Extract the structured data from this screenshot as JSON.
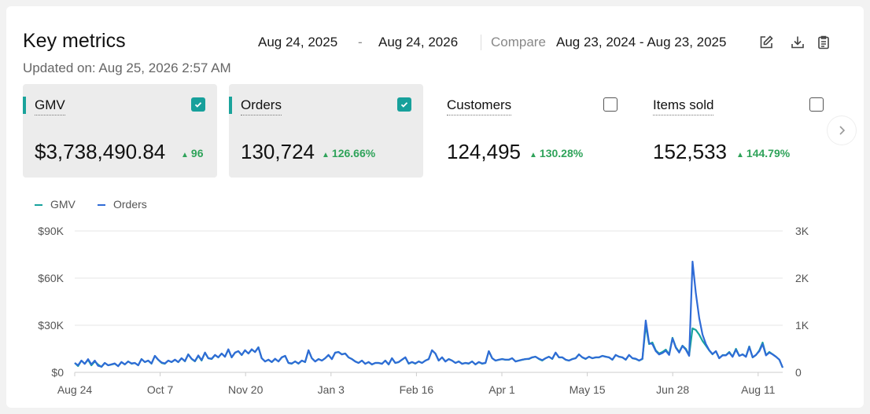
{
  "header": {
    "title": "Key metrics",
    "updated": "Updated on: Aug 25, 2026 2:57 AM",
    "date_start": "Aug 24, 2025",
    "date_dash": "-",
    "date_end": "Aug 24, 2026",
    "compare_label": "Compare",
    "compare_range": "Aug 23, 2024 - Aug 23, 2025",
    "icons": [
      "edit-icon",
      "download-icon",
      "clipboard-icon"
    ]
  },
  "metrics": [
    {
      "label": "GMV",
      "value": "$3,738,490.84",
      "change": "96",
      "selected": true
    },
    {
      "label": "Orders",
      "value": "130,724",
      "change": "126.66%",
      "selected": true
    },
    {
      "label": "Customers",
      "value": "124,495",
      "change": "130.28%",
      "selected": false
    },
    {
      "label": "Items sold",
      "value": "152,533",
      "change": "144.79%",
      "selected": false
    }
  ],
  "colors": {
    "gmv": "#17a39d",
    "orders": "#2f6bd6",
    "positive": "#2fa35a",
    "accent": "#1aa39b"
  },
  "chart_data": {
    "type": "line",
    "legend": [
      "GMV",
      "Orders"
    ],
    "x_ticks": [
      "Aug 24",
      "Oct 7",
      "Nov 20",
      "Jan 3",
      "Feb 16",
      "Apr 1",
      "May 15",
      "Jun 28",
      "Aug 11"
    ],
    "y_left_ticks": [
      "$0",
      "$30K",
      "$60K",
      "$90K"
    ],
    "y_right_ticks": [
      "0",
      "1K",
      "2K",
      "3K"
    ],
    "y_left_range": [
      0,
      90000
    ],
    "y_right_range": [
      0,
      3000
    ],
    "series": [
      {
        "name": "GMV",
        "values": [
          6000,
          4000,
          7500,
          5500,
          8000,
          4500,
          7000,
          5000,
          3500,
          6000,
          4500,
          5000,
          5500,
          4000,
          6500,
          5000,
          7000,
          5500,
          6000,
          4500,
          8500,
          6500,
          7500,
          5500,
          10500,
          8000,
          6000,
          5500,
          7500,
          6500,
          8000,
          6500,
          9000,
          7000,
          11500,
          8500,
          7000,
          10500,
          7500,
          12500,
          9000,
          8500,
          11000,
          9500,
          12000,
          10000,
          14500,
          9500,
          12500,
          13500,
          11000,
          14000,
          12000,
          14500,
          13000,
          16000,
          9000,
          7000,
          8000,
          6500,
          8500,
          7000,
          9500,
          10500,
          6000,
          5500,
          7000,
          5500,
          7500,
          6500,
          14000,
          9000,
          7000,
          8500,
          7500,
          9000,
          11000,
          8500,
          12500,
          13000,
          11500,
          12000,
          9500,
          8500,
          7000,
          6000,
          7500,
          5500,
          6500,
          5000,
          6000,
          6000,
          5500,
          7500,
          5000,
          9000,
          6000,
          6500,
          8000,
          9500,
          5500,
          6500,
          5500,
          7000,
          6000,
          7500,
          8500,
          14000,
          12000,
          7500,
          9500,
          7000,
          8500,
          7500,
          6000,
          7000,
          5500,
          6000,
          5500,
          7000,
          5000,
          6500,
          5500,
          6000,
          13500,
          9000,
          7500,
          8000,
          8500,
          8000,
          8000,
          9000,
          7000,
          7500,
          8000,
          8500,
          8500,
          9500,
          10000,
          8500,
          7500,
          9000,
          10000,
          8500,
          12500,
          9500,
          9500,
          8000,
          7500,
          8500,
          9000,
          11500,
          9500,
          8500,
          10000,
          9000,
          9500,
          9500,
          10500,
          10000,
          9500,
          8000,
          11000,
          10000,
          9500,
          8000,
          11000,
          9000,
          8500,
          7500,
          8500,
          30000,
          18000,
          19000,
          14000,
          12000,
          13000,
          14500,
          11500,
          22000,
          16000,
          13000,
          17000,
          15000,
          11000,
          28000,
          27000,
          24000,
          20000,
          17000,
          14000,
          11500,
          13500,
          9000,
          11000,
          11000,
          13000,
          10000,
          15000,
          10500,
          11500,
          10000,
          16500,
          9500,
          11000,
          14000,
          19000,
          11000,
          13000,
          11500,
          10000,
          8000,
          3000
        ]
      },
      {
        "name": "Orders",
        "values": [
          200,
          150,
          250,
          180,
          280,
          170,
          250,
          140,
          120,
          200,
          150,
          170,
          190,
          130,
          220,
          170,
          230,
          190,
          200,
          150,
          280,
          220,
          250,
          190,
          350,
          270,
          210,
          190,
          250,
          220,
          270,
          220,
          300,
          240,
          380,
          290,
          240,
          360,
          260,
          420,
          300,
          290,
          370,
          320,
          400,
          330,
          490,
          320,
          420,
          450,
          370,
          470,
          400,
          490,
          430,
          530,
          300,
          230,
          270,
          220,
          290,
          230,
          320,
          350,
          200,
          190,
          230,
          190,
          250,
          220,
          470,
          300,
          230,
          280,
          250,
          300,
          370,
          280,
          420,
          430,
          380,
          400,
          320,
          280,
          230,
          200,
          250,
          180,
          220,
          170,
          200,
          200,
          180,
          250,
          170,
          300,
          200,
          220,
          270,
          320,
          190,
          220,
          190,
          230,
          200,
          250,
          280,
          470,
          400,
          250,
          320,
          230,
          280,
          250,
          200,
          230,
          180,
          200,
          190,
          230,
          170,
          220,
          190,
          200,
          450,
          300,
          250,
          270,
          280,
          270,
          270,
          300,
          230,
          250,
          270,
          280,
          290,
          320,
          330,
          290,
          260,
          300,
          330,
          290,
          420,
          320,
          320,
          270,
          250,
          280,
          300,
          380,
          320,
          290,
          330,
          300,
          320,
          320,
          350,
          330,
          320,
          270,
          370,
          330,
          320,
          270,
          370,
          300,
          290,
          250,
          290,
          1100,
          620,
          600,
          450,
          380,
          410,
          460,
          370,
          720,
          520,
          420,
          560,
          480,
          350,
          2350,
          1680,
          1150,
          800,
          600,
          470,
          390,
          450,
          300,
          360,
          360,
          420,
          330,
          480,
          350,
          380,
          330,
          540,
          320,
          370,
          450,
          600,
          360,
          420,
          380,
          330,
          270,
          100
        ]
      }
    ]
  }
}
